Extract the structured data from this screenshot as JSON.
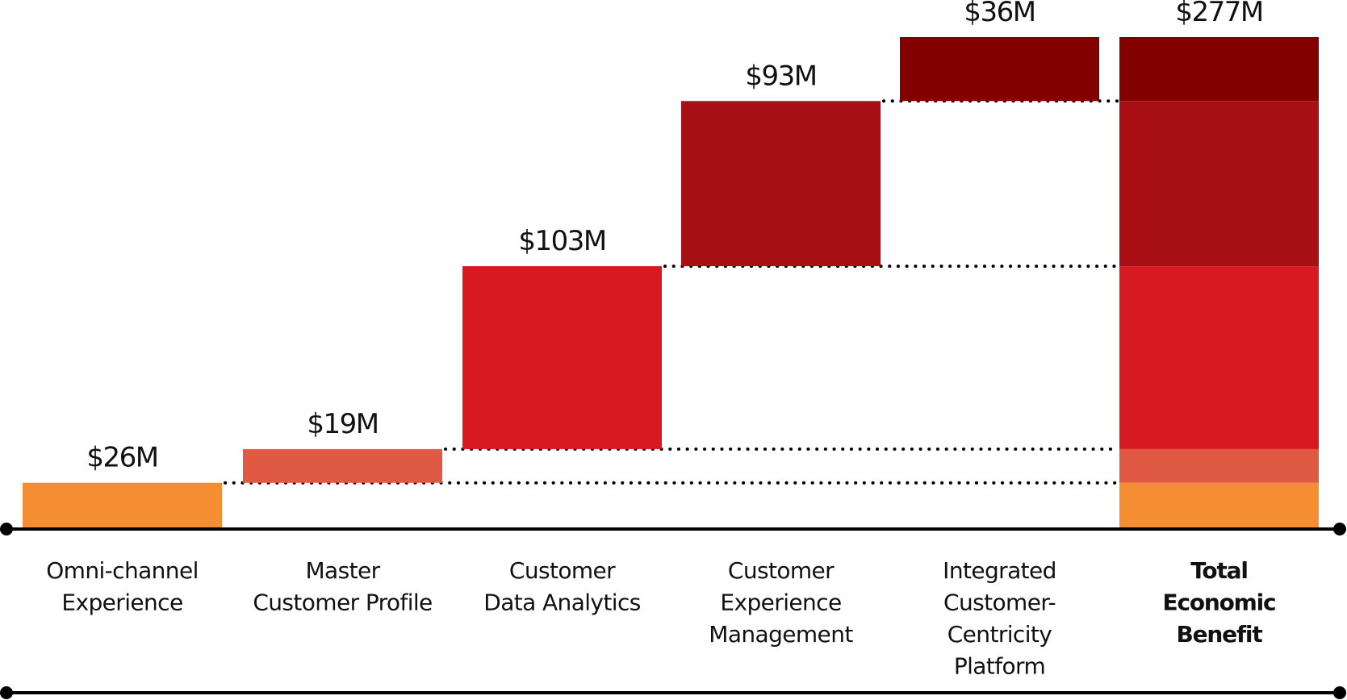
{
  "chart_data": {
    "type": "bar",
    "subtype": "waterfall",
    "title": "",
    "xlabel": "",
    "ylabel": "",
    "units": "$M",
    "ylim": [
      0,
      277
    ],
    "grid": false,
    "legend": "none",
    "categories": [
      [
        "Omni-channel",
        "Experience"
      ],
      [
        "Master",
        "Customer Profile"
      ],
      [
        "Customer",
        "Data Analytics"
      ],
      [
        "Customer",
        "Experience",
        "Management"
      ],
      [
        "Integrated",
        "Customer-",
        "Centricity",
        "Platform"
      ],
      [
        "Total",
        "Economic",
        "Benefit"
      ]
    ],
    "series": [
      {
        "name": "Omni-channel Experience",
        "value": 26,
        "label": "$26M",
        "color": "#f58d32"
      },
      {
        "name": "Master Customer Profile",
        "value": 19,
        "label": "$19M",
        "color": "#e05a43"
      },
      {
        "name": "Customer Data Analytics",
        "value": 103,
        "label": "$103M",
        "color": "#d71921"
      },
      {
        "name": "Customer Experience Management",
        "value": 93,
        "label": "$93M",
        "color": "#a91016"
      },
      {
        "name": "Integrated Customer-Centricity Platform",
        "value": 36,
        "label": "$36M",
        "color": "#830000"
      }
    ],
    "total": {
      "name": "Total Economic Benefit",
      "value": 277,
      "label": "$277M",
      "bold_label": true
    },
    "connectors": "dotted"
  }
}
